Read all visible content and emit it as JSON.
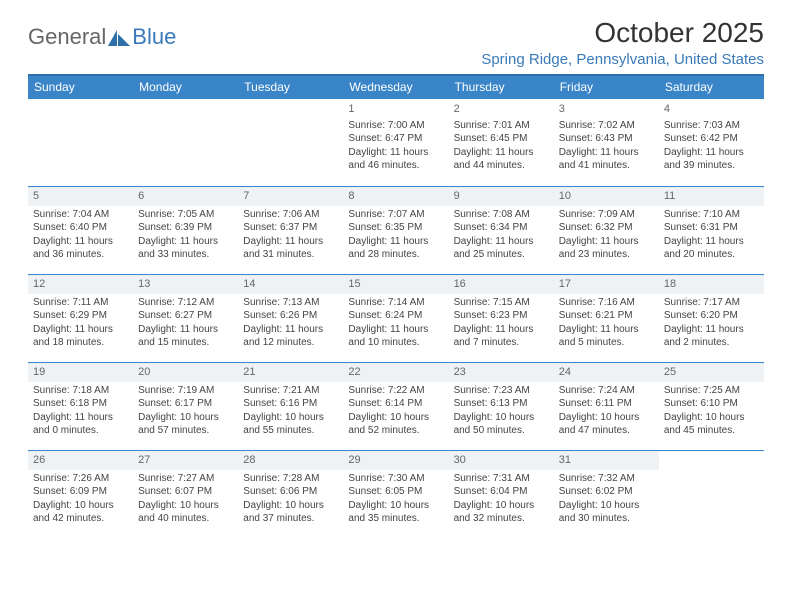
{
  "logo": {
    "part1": "General",
    "part2": "Blue"
  },
  "title": "October 2025",
  "location": "Spring Ridge, Pennsylvania, United States",
  "colors": {
    "header_bg": "#3a85c8",
    "header_text": "#ffffff",
    "accent": "#3a7ab8",
    "border": "#3a85c8",
    "shade_bg": "#eef2f5",
    "text": "#444444"
  },
  "day_headers": [
    "Sunday",
    "Monday",
    "Tuesday",
    "Wednesday",
    "Thursday",
    "Friday",
    "Saturday"
  ],
  "weeks": [
    [
      null,
      null,
      null,
      {
        "n": "1",
        "sr": "Sunrise: 7:00 AM",
        "ss": "Sunset: 6:47 PM",
        "d1": "Daylight: 11 hours",
        "d2": "and 46 minutes."
      },
      {
        "n": "2",
        "sr": "Sunrise: 7:01 AM",
        "ss": "Sunset: 6:45 PM",
        "d1": "Daylight: 11 hours",
        "d2": "and 44 minutes."
      },
      {
        "n": "3",
        "sr": "Sunrise: 7:02 AM",
        "ss": "Sunset: 6:43 PM",
        "d1": "Daylight: 11 hours",
        "d2": "and 41 minutes."
      },
      {
        "n": "4",
        "sr": "Sunrise: 7:03 AM",
        "ss": "Sunset: 6:42 PM",
        "d1": "Daylight: 11 hours",
        "d2": "and 39 minutes."
      }
    ],
    [
      {
        "n": "5",
        "sr": "Sunrise: 7:04 AM",
        "ss": "Sunset: 6:40 PM",
        "d1": "Daylight: 11 hours",
        "d2": "and 36 minutes."
      },
      {
        "n": "6",
        "sr": "Sunrise: 7:05 AM",
        "ss": "Sunset: 6:39 PM",
        "d1": "Daylight: 11 hours",
        "d2": "and 33 minutes."
      },
      {
        "n": "7",
        "sr": "Sunrise: 7:06 AM",
        "ss": "Sunset: 6:37 PM",
        "d1": "Daylight: 11 hours",
        "d2": "and 31 minutes."
      },
      {
        "n": "8",
        "sr": "Sunrise: 7:07 AM",
        "ss": "Sunset: 6:35 PM",
        "d1": "Daylight: 11 hours",
        "d2": "and 28 minutes."
      },
      {
        "n": "9",
        "sr": "Sunrise: 7:08 AM",
        "ss": "Sunset: 6:34 PM",
        "d1": "Daylight: 11 hours",
        "d2": "and 25 minutes."
      },
      {
        "n": "10",
        "sr": "Sunrise: 7:09 AM",
        "ss": "Sunset: 6:32 PM",
        "d1": "Daylight: 11 hours",
        "d2": "and 23 minutes."
      },
      {
        "n": "11",
        "sr": "Sunrise: 7:10 AM",
        "ss": "Sunset: 6:31 PM",
        "d1": "Daylight: 11 hours",
        "d2": "and 20 minutes."
      }
    ],
    [
      {
        "n": "12",
        "sr": "Sunrise: 7:11 AM",
        "ss": "Sunset: 6:29 PM",
        "d1": "Daylight: 11 hours",
        "d2": "and 18 minutes."
      },
      {
        "n": "13",
        "sr": "Sunrise: 7:12 AM",
        "ss": "Sunset: 6:27 PM",
        "d1": "Daylight: 11 hours",
        "d2": "and 15 minutes."
      },
      {
        "n": "14",
        "sr": "Sunrise: 7:13 AM",
        "ss": "Sunset: 6:26 PM",
        "d1": "Daylight: 11 hours",
        "d2": "and 12 minutes."
      },
      {
        "n": "15",
        "sr": "Sunrise: 7:14 AM",
        "ss": "Sunset: 6:24 PM",
        "d1": "Daylight: 11 hours",
        "d2": "and 10 minutes."
      },
      {
        "n": "16",
        "sr": "Sunrise: 7:15 AM",
        "ss": "Sunset: 6:23 PM",
        "d1": "Daylight: 11 hours",
        "d2": "and 7 minutes."
      },
      {
        "n": "17",
        "sr": "Sunrise: 7:16 AM",
        "ss": "Sunset: 6:21 PM",
        "d1": "Daylight: 11 hours",
        "d2": "and 5 minutes."
      },
      {
        "n": "18",
        "sr": "Sunrise: 7:17 AM",
        "ss": "Sunset: 6:20 PM",
        "d1": "Daylight: 11 hours",
        "d2": "and 2 minutes."
      }
    ],
    [
      {
        "n": "19",
        "sr": "Sunrise: 7:18 AM",
        "ss": "Sunset: 6:18 PM",
        "d1": "Daylight: 11 hours",
        "d2": "and 0 minutes."
      },
      {
        "n": "20",
        "sr": "Sunrise: 7:19 AM",
        "ss": "Sunset: 6:17 PM",
        "d1": "Daylight: 10 hours",
        "d2": "and 57 minutes."
      },
      {
        "n": "21",
        "sr": "Sunrise: 7:21 AM",
        "ss": "Sunset: 6:16 PM",
        "d1": "Daylight: 10 hours",
        "d2": "and 55 minutes."
      },
      {
        "n": "22",
        "sr": "Sunrise: 7:22 AM",
        "ss": "Sunset: 6:14 PM",
        "d1": "Daylight: 10 hours",
        "d2": "and 52 minutes."
      },
      {
        "n": "23",
        "sr": "Sunrise: 7:23 AM",
        "ss": "Sunset: 6:13 PM",
        "d1": "Daylight: 10 hours",
        "d2": "and 50 minutes."
      },
      {
        "n": "24",
        "sr": "Sunrise: 7:24 AM",
        "ss": "Sunset: 6:11 PM",
        "d1": "Daylight: 10 hours",
        "d2": "and 47 minutes."
      },
      {
        "n": "25",
        "sr": "Sunrise: 7:25 AM",
        "ss": "Sunset: 6:10 PM",
        "d1": "Daylight: 10 hours",
        "d2": "and 45 minutes."
      }
    ],
    [
      {
        "n": "26",
        "sr": "Sunrise: 7:26 AM",
        "ss": "Sunset: 6:09 PM",
        "d1": "Daylight: 10 hours",
        "d2": "and 42 minutes."
      },
      {
        "n": "27",
        "sr": "Sunrise: 7:27 AM",
        "ss": "Sunset: 6:07 PM",
        "d1": "Daylight: 10 hours",
        "d2": "and 40 minutes."
      },
      {
        "n": "28",
        "sr": "Sunrise: 7:28 AM",
        "ss": "Sunset: 6:06 PM",
        "d1": "Daylight: 10 hours",
        "d2": "and 37 minutes."
      },
      {
        "n": "29",
        "sr": "Sunrise: 7:30 AM",
        "ss": "Sunset: 6:05 PM",
        "d1": "Daylight: 10 hours",
        "d2": "and 35 minutes."
      },
      {
        "n": "30",
        "sr": "Sunrise: 7:31 AM",
        "ss": "Sunset: 6:04 PM",
        "d1": "Daylight: 10 hours",
        "d2": "and 32 minutes."
      },
      {
        "n": "31",
        "sr": "Sunrise: 7:32 AM",
        "ss": "Sunset: 6:02 PM",
        "d1": "Daylight: 10 hours",
        "d2": "and 30 minutes."
      },
      null
    ]
  ]
}
